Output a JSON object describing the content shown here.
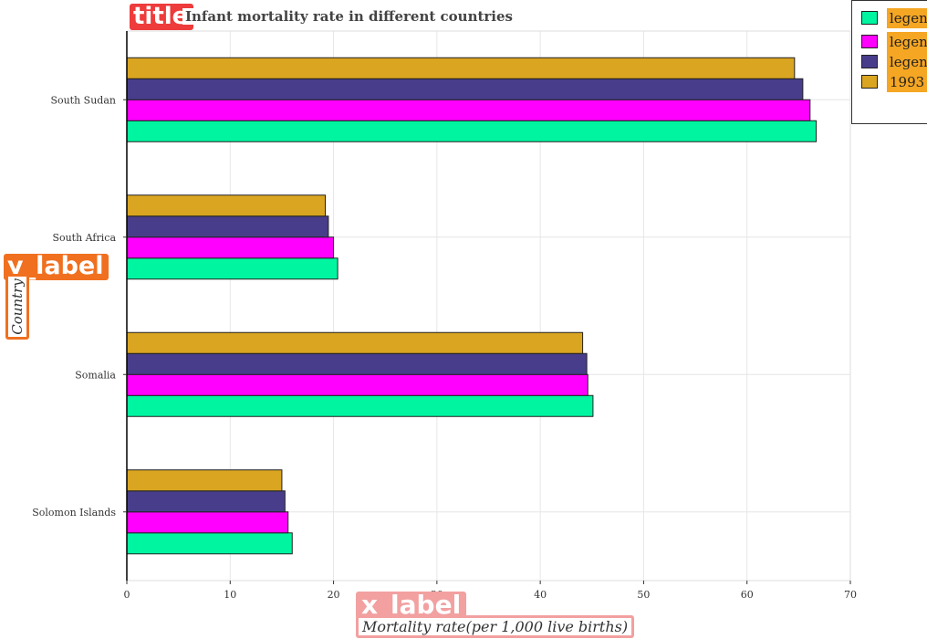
{
  "chart_data": {
    "type": "bar",
    "orientation": "horizontal",
    "title": "Infant mortality rate in different countries",
    "xlabel": "Mortality rate(per 1,000 live births)",
    "ylabel": "Country",
    "categories": [
      "Solomon Islands",
      "Somalia",
      "South Africa",
      "South Sudan"
    ],
    "series": [
      {
        "name": "",
        "color": "#00f5a0",
        "values": [
          16.0,
          45.1,
          20.4,
          66.7
        ]
      },
      {
        "name": "",
        "color": "#ff00ff",
        "values": [
          15.6,
          44.6,
          20.0,
          66.1
        ]
      },
      {
        "name": "",
        "color": "#483d8b",
        "values": [
          15.3,
          44.5,
          19.5,
          65.4
        ]
      },
      {
        "name": "1993",
        "color": "#daa520",
        "values": [
          15.0,
          44.1,
          19.2,
          64.6
        ]
      }
    ],
    "xlim": [
      0,
      70
    ],
    "xticks": [
      0,
      10,
      20,
      30,
      40,
      50,
      60,
      70
    ],
    "grid": true,
    "legend_position": "top-right"
  },
  "annotations": {
    "title_tag": "title",
    "x_label_tag": "x_label",
    "y_label_tag": "y_label",
    "legend_tag": "legend"
  }
}
